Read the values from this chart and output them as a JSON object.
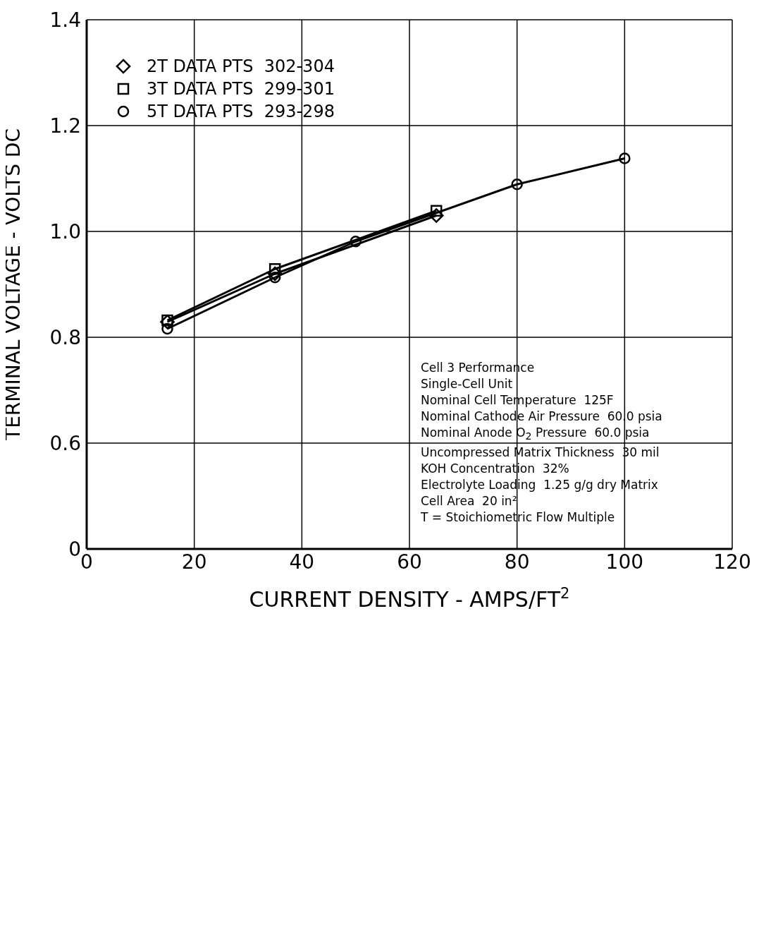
{
  "chart_data": {
    "type": "line",
    "xlabel": "CURRENT DENSITY - AMPS/FT$^{2}$",
    "ylabel": "TERMINAL VOLTAGE - VOLTS DC",
    "xlim": [
      0,
      120
    ],
    "xticks": [
      0,
      20,
      40,
      60,
      80,
      100,
      120
    ],
    "ylim": [
      0.4,
      1.4
    ],
    "yticks": [
      {
        "value": 0.4,
        "label": "0"
      },
      {
        "value": 0.6,
        "label": "0.6"
      },
      {
        "value": 0.8,
        "label": "0.8"
      },
      {
        "value": 1,
        "label": "1.0"
      },
      {
        "value": 1.2,
        "label": "1.2"
      },
      {
        "value": 1.4,
        "label": "1.4"
      }
    ],
    "grid": true,
    "legend": "top left",
    "line_style": "solid",
    "series": [
      {
        "name": "2T DATA PTS  302-304",
        "color": "#000000",
        "marker": "diamond",
        "x": [
          15,
          35,
          65
        ],
        "values": [
          0.829,
          0.92,
          1.03
        ]
      },
      {
        "name": "3T DATA PTS  299-301",
        "color": "#000000",
        "marker": "square",
        "x": [
          15,
          35,
          65
        ],
        "values": [
          0.832,
          0.929,
          1.039
        ]
      },
      {
        "name": "5T DATA PTS  293-298",
        "color": "#000000",
        "marker": "circle",
        "x": [
          15,
          35,
          50,
          80,
          100
        ],
        "values": [
          0.816,
          0.913,
          0.981,
          1.089,
          1.138
        ]
      }
    ],
    "annotations": [
      "Cell 3 Performance",
      "Single-Cell Unit",
      "Nominal Cell Temperature  125F",
      "Nominal Cathode Air Pressure  60.0 psia",
      "Nominal Anode O$_{2}$ Pressure  60.0 psia",
      "Uncompressed Matrix Thickness  30 mil",
      "KOH Concentration  32%",
      "Electrolyte Loading  1.25 g/g dry Matrix",
      "Cell Area  20 in²",
      "T = Stoichiometric Flow Multiple"
    ]
  }
}
